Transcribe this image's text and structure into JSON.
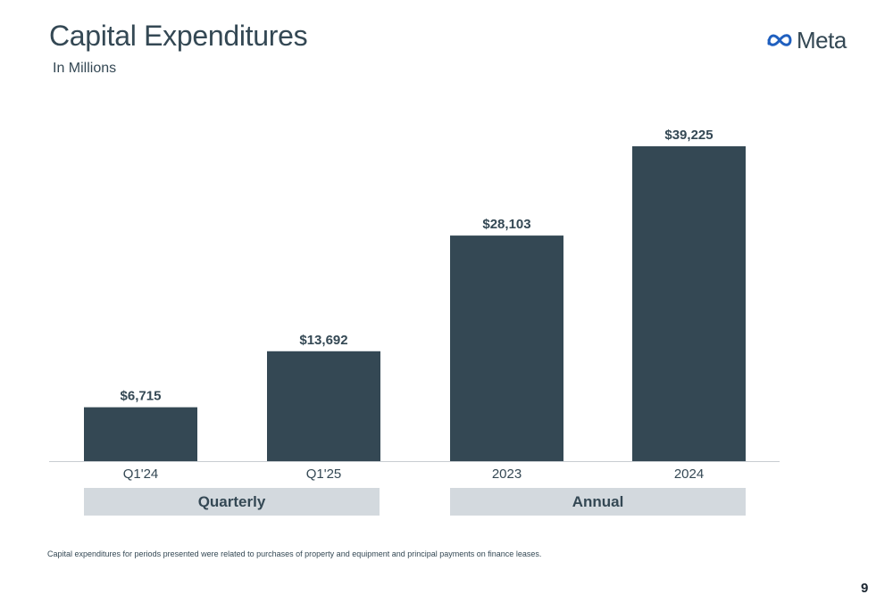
{
  "header": {
    "title": "Capital Expenditures",
    "subtitle": "In Millions",
    "logo_text": "Meta"
  },
  "groups": [
    {
      "label": "Quarterly",
      "categories": [
        "Q1'24",
        "Q1'25"
      ]
    },
    {
      "label": "Annual",
      "categories": [
        "2023",
        "2024"
      ]
    }
  ],
  "chart_data": {
    "type": "bar",
    "title": "Capital Expenditures",
    "subtitle": "In Millions",
    "categories": [
      "Q1'24",
      "Q1'25",
      "2023",
      "2024"
    ],
    "values": [
      6715,
      13692,
      28103,
      39225
    ],
    "data_labels": [
      "$6,715",
      "$13,692",
      "$28,103",
      "$39,225"
    ],
    "bar_color": "#344854",
    "ylim": [
      0,
      42000
    ],
    "grid": false,
    "legend": "none"
  },
  "footnote": "Capital expenditures for periods presented were related to purchases of property and equipment and principal payments on finance leases.",
  "page_number": "9",
  "colors": {
    "bar": "#344854",
    "group_box": "#d3d9de",
    "text": "#344854",
    "axis": "#c8cdd1"
  }
}
